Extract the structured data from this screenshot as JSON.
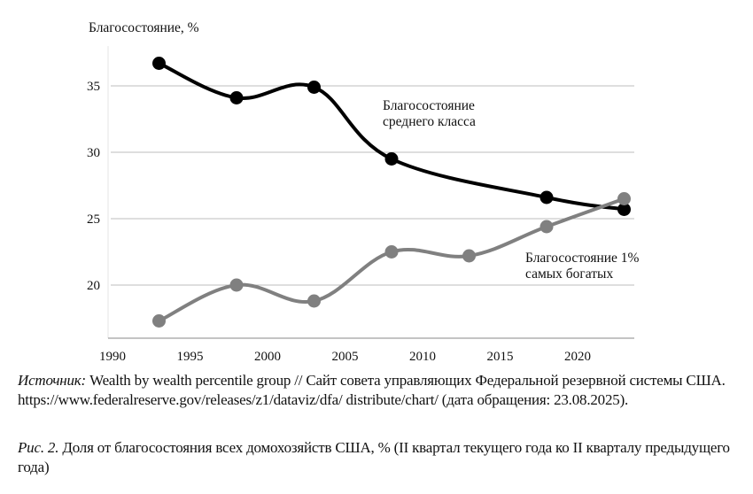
{
  "chart_data": {
    "type": "line",
    "ylabel": "Благосостояние, %",
    "xlabel": "",
    "xlim": [
      1990,
      2024
    ],
    "ylim": [
      16,
      38
    ],
    "x_ticks": [
      1990,
      1995,
      2000,
      2005,
      2010,
      2015,
      2020
    ],
    "y_ticks": [
      20,
      25,
      30,
      35
    ],
    "grid": "horizontal",
    "series": [
      {
        "name": "Благосостояние среднего класса",
        "label_lines": [
          "Благосостояние",
          "среднего класса"
        ],
        "color": "#000000",
        "x": [
          1993,
          1998,
          2003,
          2008,
          2018,
          2023
        ],
        "y": [
          36.7,
          34.1,
          34.9,
          29.5,
          26.6,
          25.7
        ]
      },
      {
        "name": "Благосостояние 1% самых богатых",
        "label_lines": [
          "Благосостояние 1%",
          "самых богатых"
        ],
        "color": "#808080",
        "x": [
          1993,
          1998,
          2003,
          2008,
          2013,
          2018,
          2023
        ],
        "y": [
          17.3,
          20.0,
          18.8,
          22.5,
          22.2,
          24.4,
          26.5
        ]
      }
    ]
  },
  "source": {
    "prefix": "Источник:",
    "text": " Wealth by wealth percentile group // Сайт совета управляющих Федеральной резервной системы США. https://www.federalreserve.gov/releases/z1/dataviz/dfa/ distribute/chart/ (дата обращения: 23.08.2025)."
  },
  "figure_caption": {
    "prefix": "Рис. 2.",
    "text": " Доля от благосостояния всех домохозяйств США, % (II квартал текущего года ко II кварталу предыдущего года)"
  }
}
